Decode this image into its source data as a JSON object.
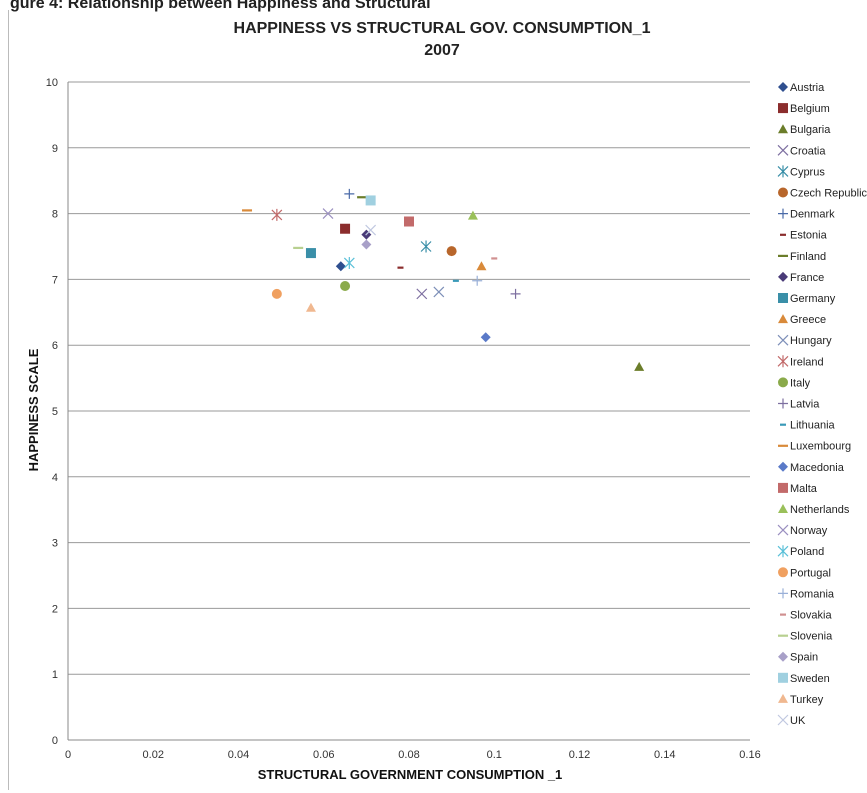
{
  "page": {
    "header_fragment": "gure 4: Relationship between Happiness and Structural"
  },
  "chart_data": {
    "type": "scatter",
    "title": "HAPPINESS VS STRUCTURAL GOV. CONSUMPTION_1",
    "subtitle": "2007",
    "xlabel": "STRUCTURAL GOVERNMENT CONSUMPTION _1",
    "ylabel": "HAPPINESS SCALE",
    "xlim": [
      0,
      0.16
    ],
    "ylim": [
      0,
      10
    ],
    "x_ticks": [
      "0",
      "0.02",
      "0.04",
      "0.06",
      "0.08",
      "0.1",
      "0.12",
      "0.14",
      "0.16"
    ],
    "y_ticks": [
      "0",
      "1",
      "2",
      "3",
      "4",
      "5",
      "6",
      "7",
      "8",
      "9",
      "10"
    ],
    "grid": "horizontal",
    "legend_position": "right",
    "series": [
      {
        "name": "Austria",
        "marker": "diamond",
        "color": "#2f4f8f",
        "points": [
          [
            0.064,
            7.2
          ]
        ]
      },
      {
        "name": "Belgium",
        "marker": "square",
        "color": "#8b2d2d",
        "points": [
          [
            0.065,
            7.77
          ]
        ]
      },
      {
        "name": "Bulgaria",
        "marker": "triangle",
        "color": "#6b7d2a",
        "points": [
          [
            0.134,
            5.67
          ]
        ]
      },
      {
        "name": "Croatia",
        "marker": "x",
        "color": "#7d6fa0",
        "points": [
          [
            0.083,
            6.78
          ]
        ]
      },
      {
        "name": "Cyprus",
        "marker": "asterisk",
        "color": "#3a8fa8",
        "points": [
          [
            0.084,
            7.5
          ]
        ]
      },
      {
        "name": "Czech Republic",
        "marker": "circle",
        "color": "#b8662b",
        "points": [
          [
            0.09,
            7.43
          ]
        ]
      },
      {
        "name": "Denmark",
        "marker": "plus",
        "color": "#4a6aa8",
        "points": [
          [
            0.066,
            8.3
          ]
        ]
      },
      {
        "name": "Estonia",
        "marker": "dash",
        "color": "#8b2d2d",
        "points": [
          [
            0.078,
            7.18
          ]
        ]
      },
      {
        "name": "Finland",
        "marker": "longdash",
        "color": "#6b7d2a",
        "points": [
          [
            0.069,
            8.25
          ]
        ]
      },
      {
        "name": "France",
        "marker": "diamond",
        "color": "#4a3b78",
        "points": [
          [
            0.07,
            7.68
          ]
        ]
      },
      {
        "name": "Germany",
        "marker": "square",
        "color": "#3a8fa8",
        "points": [
          [
            0.057,
            7.4
          ]
        ]
      },
      {
        "name": "Greece",
        "marker": "triangle",
        "color": "#d98a3a",
        "points": [
          [
            0.097,
            7.2
          ]
        ]
      },
      {
        "name": "Hungary",
        "marker": "x",
        "color": "#7d8fb8",
        "points": [
          [
            0.087,
            6.81
          ]
        ]
      },
      {
        "name": "Ireland",
        "marker": "asterisk",
        "color": "#c26a6a",
        "points": [
          [
            0.049,
            7.98
          ]
        ]
      },
      {
        "name": "Italy",
        "marker": "circle",
        "color": "#8aaa4a",
        "points": [
          [
            0.065,
            6.9
          ]
        ]
      },
      {
        "name": "Latvia",
        "marker": "plus",
        "color": "#7d6fa0",
        "points": [
          [
            0.105,
            6.78
          ]
        ]
      },
      {
        "name": "Lithuania",
        "marker": "dash",
        "color": "#3a9ab8",
        "points": [
          [
            0.091,
            6.98
          ]
        ]
      },
      {
        "name": "Luxembourg",
        "marker": "longdash",
        "color": "#d98a3a",
        "points": [
          [
            0.042,
            8.05
          ]
        ]
      },
      {
        "name": "Macedonia",
        "marker": "diamond",
        "color": "#5a7ac8",
        "points": [
          [
            0.098,
            6.12
          ]
        ]
      },
      {
        "name": "Malta",
        "marker": "square",
        "color": "#c26a6a",
        "points": [
          [
            0.08,
            7.88
          ]
        ]
      },
      {
        "name": "Netherlands",
        "marker": "triangle",
        "color": "#9ac05a",
        "points": [
          [
            0.095,
            7.97
          ]
        ]
      },
      {
        "name": "Norway",
        "marker": "x",
        "color": "#9a8fc0",
        "points": [
          [
            0.061,
            8.0
          ]
        ]
      },
      {
        "name": "Poland",
        "marker": "asterisk",
        "color": "#5ac0d8",
        "points": [
          [
            0.066,
            7.25
          ]
        ]
      },
      {
        "name": "Portugal",
        "marker": "circle",
        "color": "#f0a060",
        "points": [
          [
            0.049,
            6.78
          ]
        ]
      },
      {
        "name": "Romania",
        "marker": "plus",
        "color": "#9ab0d8",
        "points": [
          [
            0.096,
            6.98
          ]
        ]
      },
      {
        "name": "Slovakia",
        "marker": "dash",
        "color": "#d09090",
        "points": [
          [
            0.1,
            7.32
          ]
        ]
      },
      {
        "name": "Slovenia",
        "marker": "longdash",
        "color": "#b8d090",
        "points": [
          [
            0.054,
            7.48
          ]
        ]
      },
      {
        "name": "Spain",
        "marker": "diamond",
        "color": "#a8a0c8",
        "points": [
          [
            0.07,
            7.53
          ]
        ]
      },
      {
        "name": "Sweden",
        "marker": "square",
        "color": "#a0d0e0",
        "points": [
          [
            0.071,
            8.2
          ]
        ]
      },
      {
        "name": "Turkey",
        "marker": "triangle",
        "color": "#f0b890",
        "points": [
          [
            0.057,
            6.57
          ]
        ]
      },
      {
        "name": "UK",
        "marker": "x",
        "color": "#c0c8e0",
        "points": [
          [
            0.071,
            7.75
          ]
        ]
      }
    ]
  }
}
